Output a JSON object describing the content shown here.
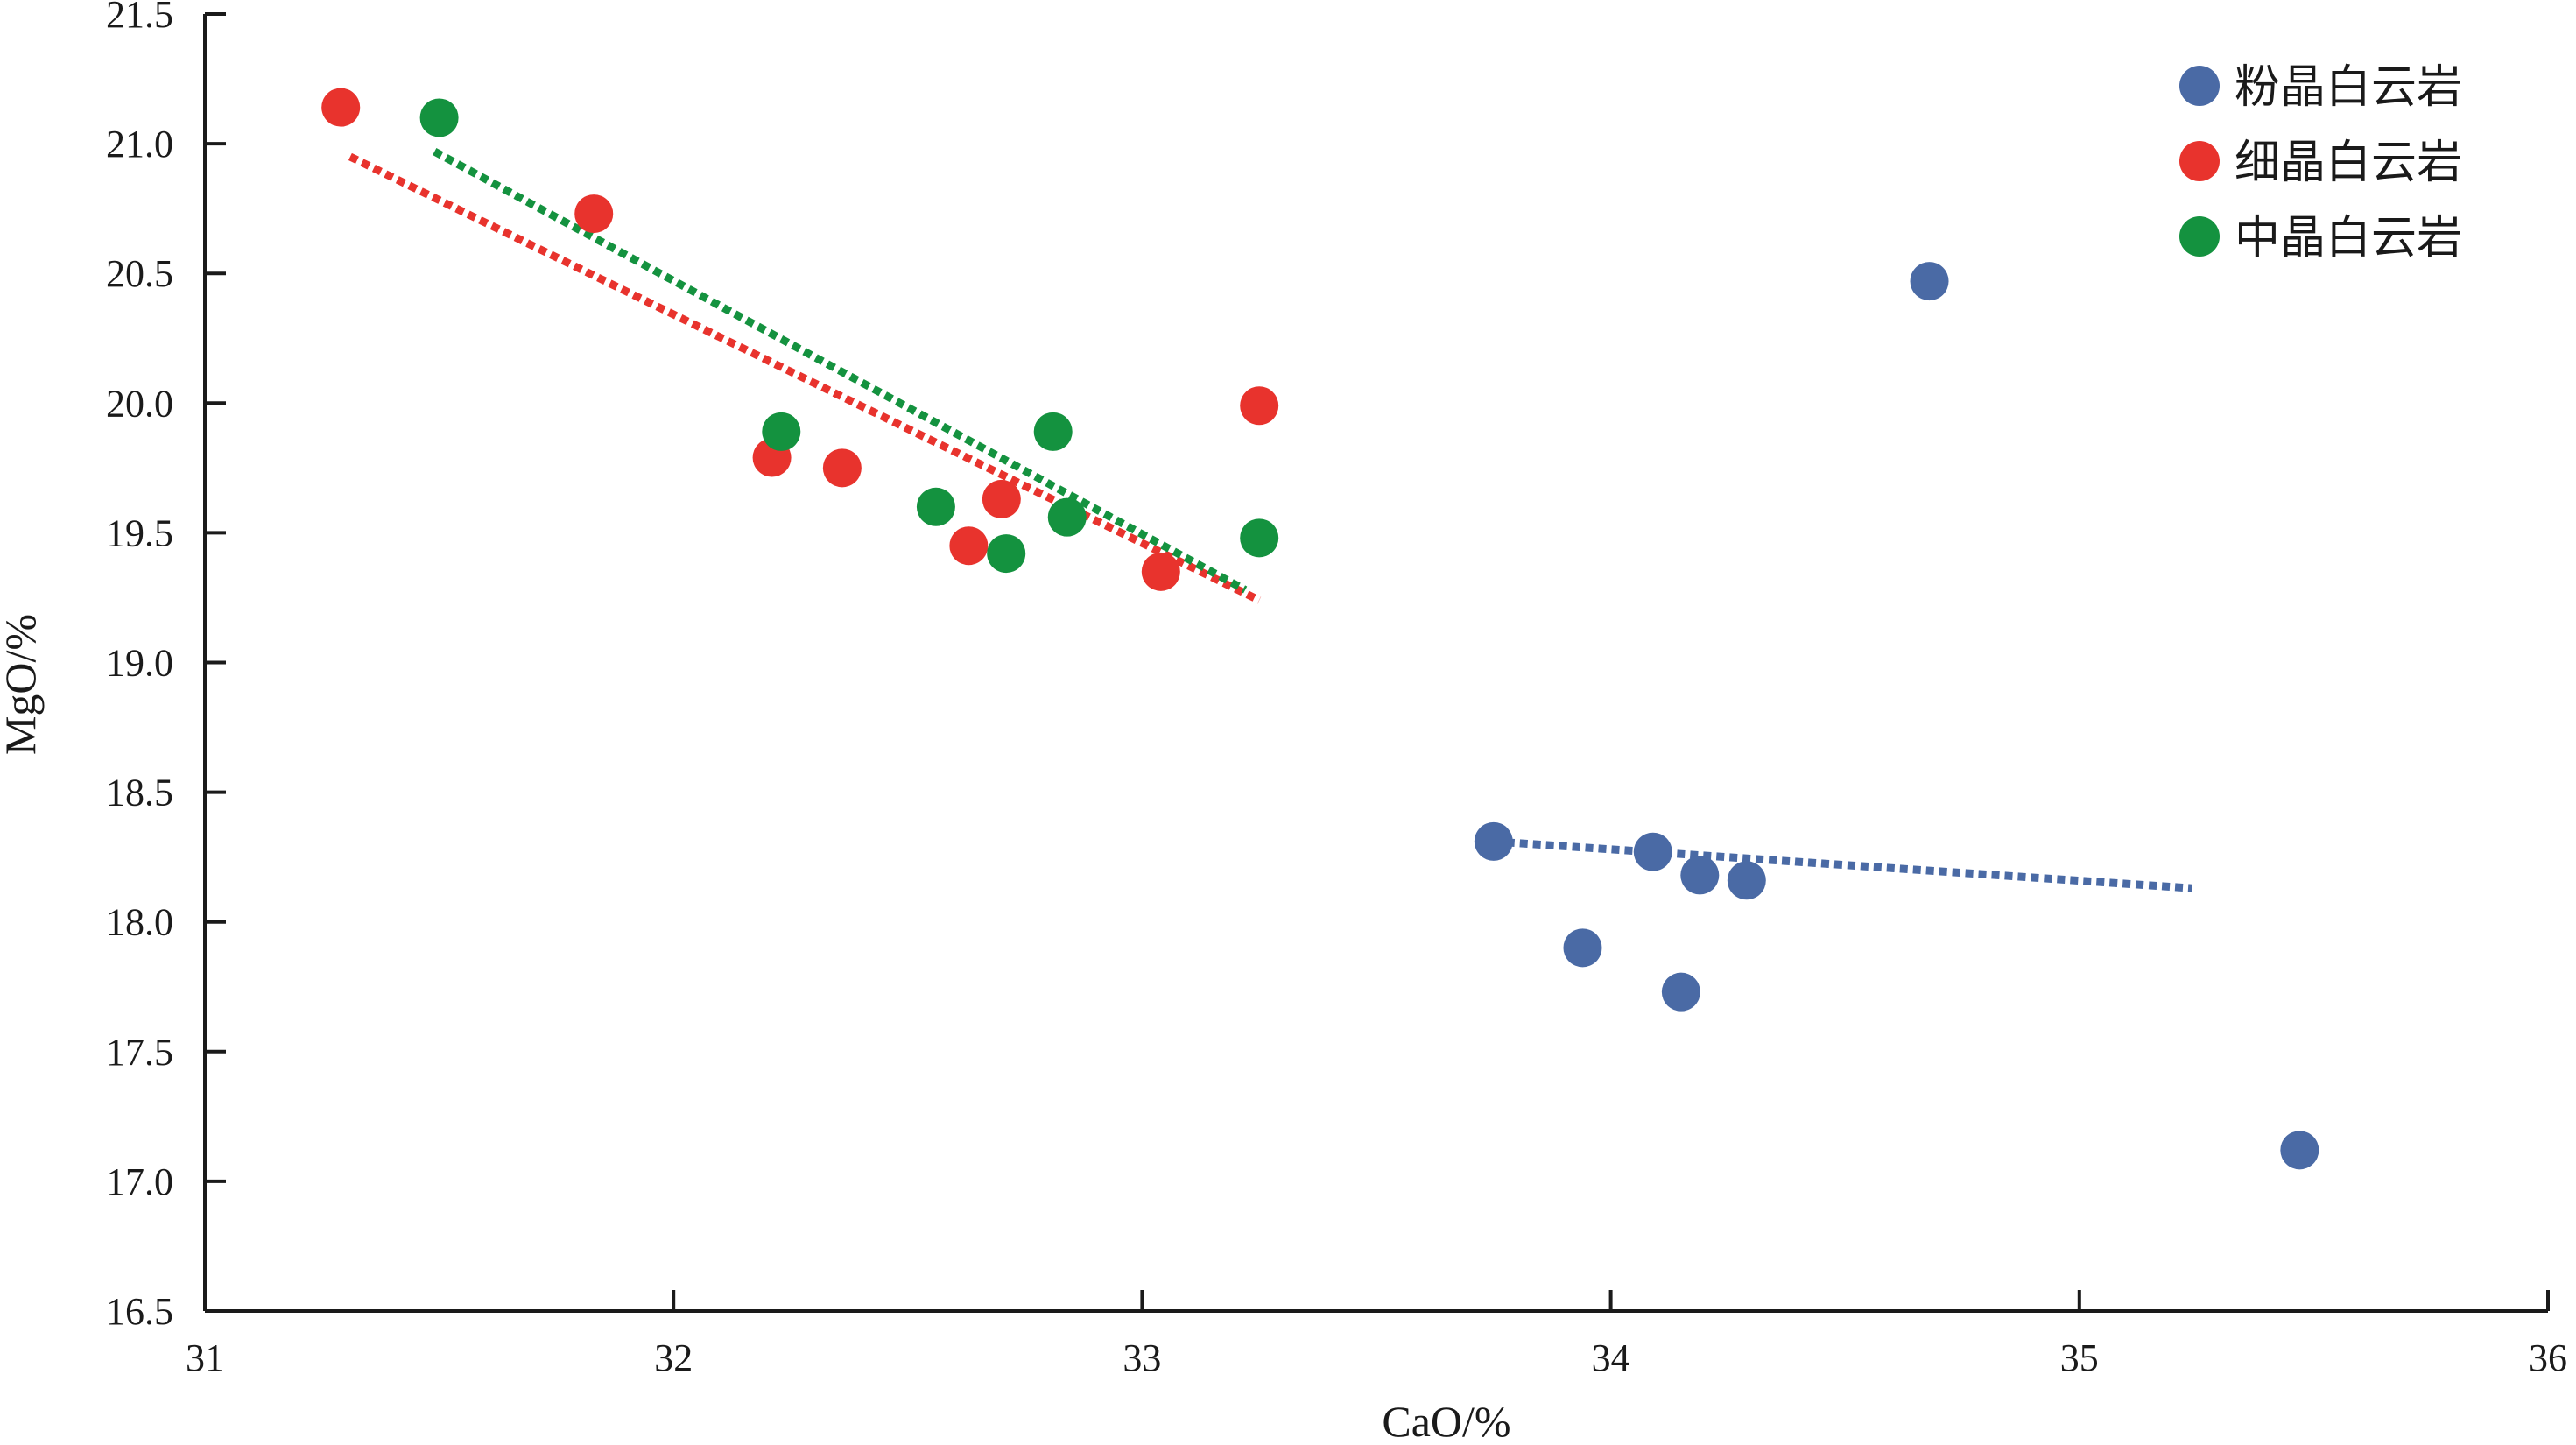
{
  "chart_data": {
    "type": "scatter",
    "xlabel": "CaO/%",
    "ylabel": "MgO/%",
    "xlim": [
      31,
      36
    ],
    "ylim": [
      16.5,
      21.5
    ],
    "xticks": [
      31,
      32,
      33,
      34,
      35,
      36
    ],
    "yticks": [
      16.5,
      17.0,
      17.5,
      18.0,
      18.5,
      19.0,
      19.5,
      20.0,
      20.5,
      21.0,
      21.5
    ],
    "xtick_labels": [
      "31",
      "32",
      "33",
      "34",
      "35",
      "36"
    ],
    "ytick_labels": [
      "16.5",
      "17.0",
      "17.5",
      "18.0",
      "18.5",
      "19.0",
      "19.5",
      "20.0",
      "20.5",
      "21.0",
      "21.5"
    ],
    "grid": false,
    "legend_position": "top-right",
    "series": [
      {
        "name": "粉晶白云岩",
        "color": "#4a6aa5",
        "points": [
          {
            "x": 34.68,
            "y": 20.47
          },
          {
            "x": 33.75,
            "y": 18.31
          },
          {
            "x": 34.09,
            "y": 18.27
          },
          {
            "x": 34.19,
            "y": 18.18
          },
          {
            "x": 34.29,
            "y": 18.16
          },
          {
            "x": 33.94,
            "y": 17.9
          },
          {
            "x": 34.15,
            "y": 17.73
          },
          {
            "x": 35.47,
            "y": 17.12
          }
        ],
        "trend": {
          "x_start": 33.75,
          "y_start": 18.31,
          "x_end": 35.24,
          "y_end": 18.13
        }
      },
      {
        "name": "细晶白云岩",
        "color": "#e8332d",
        "points": [
          {
            "x": 31.29,
            "y": 21.14
          },
          {
            "x": 31.83,
            "y": 20.73
          },
          {
            "x": 32.21,
            "y": 19.79
          },
          {
            "x": 32.36,
            "y": 19.75
          },
          {
            "x": 32.7,
            "y": 19.63
          },
          {
            "x": 32.63,
            "y": 19.45
          },
          {
            "x": 33.04,
            "y": 19.35
          },
          {
            "x": 33.25,
            "y": 19.99
          }
        ],
        "trend": {
          "x_start": 31.31,
          "y_start": 20.95,
          "x_end": 33.25,
          "y_end": 19.24
        }
      },
      {
        "name": "中晶白云岩",
        "color": "#14923f",
        "points": [
          {
            "x": 31.5,
            "y": 21.1
          },
          {
            "x": 32.23,
            "y": 19.89
          },
          {
            "x": 32.56,
            "y": 19.6
          },
          {
            "x": 32.71,
            "y": 19.42
          },
          {
            "x": 32.81,
            "y": 19.89
          },
          {
            "x": 32.84,
            "y": 19.56
          },
          {
            "x": 33.25,
            "y": 19.48
          }
        ],
        "trend": {
          "x_start": 31.49,
          "y_start": 20.97,
          "x_end": 33.22,
          "y_end": 19.28
        }
      }
    ]
  }
}
